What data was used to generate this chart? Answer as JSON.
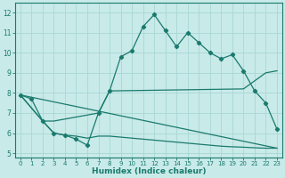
{
  "xlabel": "Humidex (Indice chaleur)",
  "background_color": "#c8eae8",
  "grid_color": "#a8d8d4",
  "line_color": "#1a7a6e",
  "xlim": [
    -0.5,
    23.5
  ],
  "ylim": [
    4.8,
    12.5
  ],
  "yticks": [
    5,
    6,
    7,
    8,
    9,
    10,
    11,
    12
  ],
  "xticks": [
    0,
    1,
    2,
    3,
    4,
    5,
    6,
    7,
    8,
    9,
    10,
    11,
    12,
    13,
    14,
    15,
    16,
    17,
    18,
    19,
    20,
    21,
    22,
    23
  ],
  "line1_x": [
    0,
    1,
    2,
    3,
    4,
    5,
    6,
    7,
    8,
    9,
    10,
    11,
    12,
    13,
    14,
    15,
    16,
    17,
    18,
    19,
    20,
    21,
    22,
    23
  ],
  "line1_y": [
    7.9,
    7.7,
    6.6,
    6.0,
    5.9,
    5.7,
    5.4,
    7.0,
    8.1,
    9.8,
    10.1,
    11.3,
    11.9,
    11.1,
    10.3,
    11.0,
    10.5,
    10.0,
    9.7,
    9.9,
    9.1,
    8.1,
    7.5,
    6.2
  ],
  "line2_x": [
    0,
    2,
    3,
    7,
    8,
    20,
    22,
    23
  ],
  "line2_y": [
    7.9,
    6.6,
    6.6,
    7.0,
    8.1,
    8.2,
    9.0,
    9.1
  ],
  "line3_x": [
    0,
    23
  ],
  "line3_y": [
    7.9,
    5.25
  ],
  "line4_x": [
    0,
    2,
    3,
    4,
    5,
    6,
    7,
    8,
    9,
    10,
    11,
    12,
    13,
    14,
    15,
    16,
    17,
    18,
    19,
    20,
    21,
    22,
    23
  ],
  "line4_y": [
    7.9,
    6.6,
    6.0,
    5.9,
    5.85,
    5.75,
    5.85,
    5.85,
    5.8,
    5.75,
    5.7,
    5.65,
    5.6,
    5.55,
    5.5,
    5.45,
    5.4,
    5.35,
    5.32,
    5.3,
    5.27,
    5.25,
    5.25
  ]
}
